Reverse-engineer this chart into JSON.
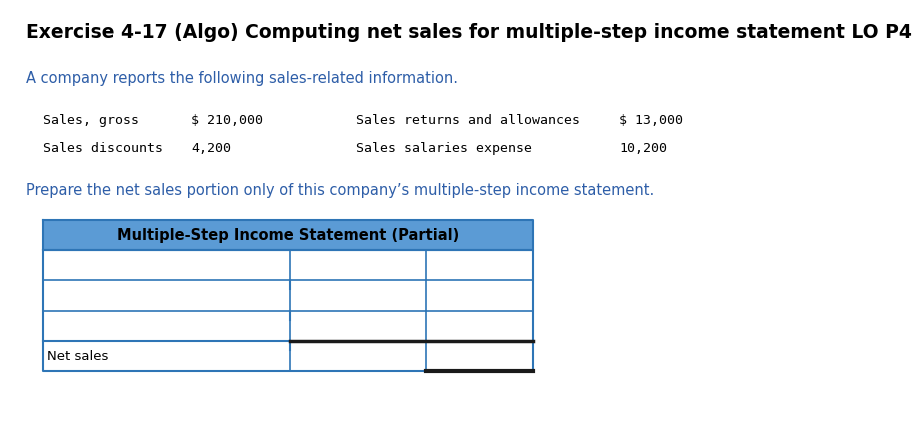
{
  "title": "Exercise 4-17 (Algo) Computing net sales for multiple-step income statement LO P4",
  "subtitle": "A company reports the following sales-related information.",
  "info_col1": [
    "Sales, gross",
    "Sales discounts"
  ],
  "info_col2": [
    "$ 210,000",
    "4,200"
  ],
  "info_col3": [
    "Sales returns and allowances",
    "Sales salaries expense"
  ],
  "info_col4": [
    "$ 13,000",
    "10,200"
  ],
  "prepare_text": "Prepare the net sales portion only of this company’s multiple-step income statement.",
  "table_title": "Multiple-Step Income Statement (Partial)",
  "table_header_bg": "#5B9BD5",
  "net_sales_label": "Net sales",
  "background_color": "#ffffff",
  "title_fontsize": 13.5,
  "subtitle_fontsize": 10.5,
  "info_fontsize": 9.5,
  "prepare_fontsize": 10.5,
  "table_title_fontsize": 10.5,
  "blue_border": "#2e75b6",
  "dark_border": "#1a1a1a"
}
